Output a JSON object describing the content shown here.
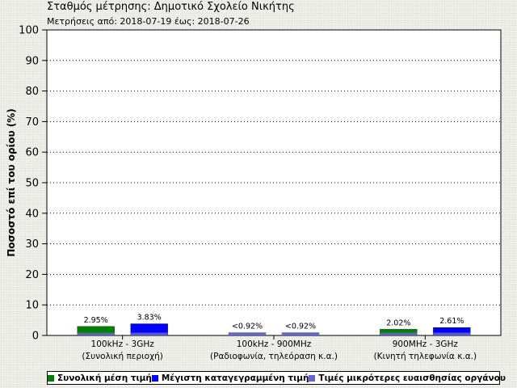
{
  "chart_data": {
    "type": "bar",
    "title": "Σταθμός μέτρησης: Δημοτικό Σχολείο Νικήτης",
    "subtitle": "Μετρήσεις από: 2018-07-19 έως: 2018-07-26",
    "ylabel": "Ποσοστό επί του ορίου (%)",
    "ylim": [
      0,
      100
    ],
    "yticks": [
      0,
      10,
      20,
      30,
      40,
      50,
      60,
      70,
      80,
      90,
      100
    ],
    "grid": true,
    "categories": [
      {
        "line1": "100kHz - 3GHz",
        "line2": "(Συνολική περιοχή)"
      },
      {
        "line1": "100kHz - 900MHz",
        "line2": "(Ραδιοφωνία, τηλεόραση κ.α.)"
      },
      {
        "line1": "900MHz - 3GHz",
        "line2": "(Κινητή τηλεφωνία κ.α.)"
      }
    ],
    "bars": [
      {
        "category": 0,
        "series": 0,
        "value": 2.95,
        "floor": 0.92,
        "label": "2.95%"
      },
      {
        "category": 0,
        "series": 1,
        "value": 3.83,
        "floor": 0.92,
        "label": "3.83%"
      },
      {
        "category": 1,
        "series": 2,
        "value": 0.92,
        "floor": 0.92,
        "label": "<0.92%"
      },
      {
        "category": 1,
        "series": 2,
        "value": 0.92,
        "floor": 0.92,
        "label": "<0.92%"
      },
      {
        "category": 2,
        "series": 0,
        "value": 2.02,
        "floor": 0.92,
        "label": "2.02%"
      },
      {
        "category": 2,
        "series": 1,
        "value": 2.61,
        "floor": 0.92,
        "label": "2.61%"
      }
    ],
    "series": [
      {
        "name": "Συνολική μέση τιμή",
        "color": "#008000"
      },
      {
        "name": "Μέγιστη καταγεγραμμένη τιμή",
        "color": "#0000ff"
      },
      {
        "name": "Τιμές μικρότερες ευαισθησίας οργάνου",
        "color": "#6666cc"
      }
    ],
    "legend_position": "bottom"
  }
}
